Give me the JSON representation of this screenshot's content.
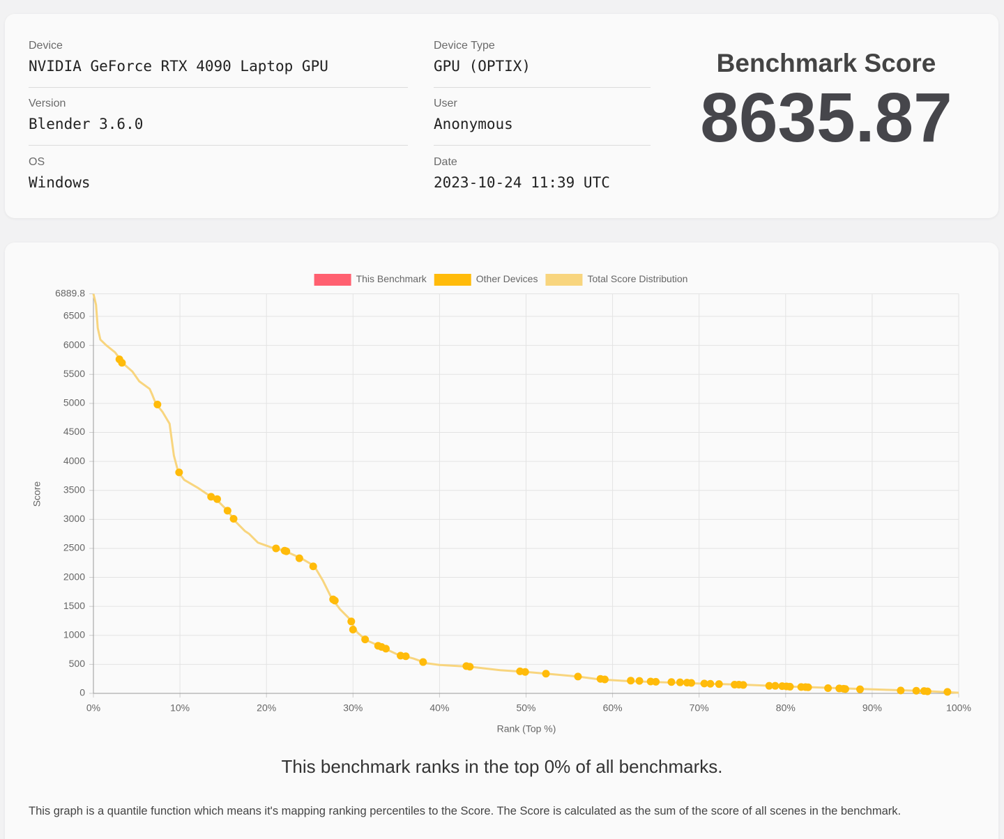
{
  "info": {
    "fields": [
      {
        "label": "Device",
        "value": "NVIDIA GeForce RTX 4090 Laptop GPU"
      },
      {
        "label": "Version",
        "value": "Blender 3.6.0"
      },
      {
        "label": "OS",
        "value": "Windows"
      },
      {
        "label": "Device Type",
        "value": "GPU (OPTIX)"
      },
      {
        "label": "User",
        "value": "Anonymous"
      },
      {
        "label": "Date",
        "value": "2023-10-24 11:39 UTC"
      }
    ],
    "score_label": "Benchmark Score",
    "score": 8635.87
  },
  "chart_data": {
    "type": "line",
    "x_label": "Rank (Top %)",
    "y_label": "Score",
    "legend": "top",
    "grid": true,
    "xlim": [
      0,
      100
    ],
    "xticks": [
      {
        "value": 0,
        "label": "0%"
      },
      {
        "value": 10,
        "label": "10%"
      },
      {
        "value": 20,
        "label": "20%"
      },
      {
        "value": 30,
        "label": "30%"
      },
      {
        "value": 40,
        "label": "40%"
      },
      {
        "value": 50,
        "label": "50%"
      },
      {
        "value": 60,
        "label": "60%"
      },
      {
        "value": 70,
        "label": "70%"
      },
      {
        "value": 80,
        "label": "80%"
      },
      {
        "value": 90,
        "label": "90%"
      },
      {
        "value": 100,
        "label": "100%"
      }
    ],
    "ylim": [
      0,
      6889.8
    ],
    "yticks": [
      0,
      500,
      1000,
      1500,
      2000,
      2500,
      3000,
      3500,
      4000,
      4500,
      5000,
      5500,
      6000,
      6500,
      6889.8
    ],
    "series": [
      {
        "name": "This Benchmark",
        "color": "#ff6070",
        "style": "points",
        "x": [],
        "values": []
      },
      {
        "name": "Other Devices",
        "color": "#ffbb0a",
        "style": "points",
        "x": [
          3.0,
          3.3,
          7.4,
          9.9,
          13.6,
          14.3,
          15.5,
          16.2,
          21.1,
          22.1,
          22.3,
          23.8,
          25.4,
          27.7,
          27.9,
          29.8,
          30.0,
          31.4,
          32.9,
          33.3,
          33.8,
          35.5,
          36.1,
          38.1,
          43.1,
          43.5,
          49.3,
          49.9,
          52.3,
          56.0,
          58.6,
          59.1,
          62.1,
          63.1,
          64.4,
          65.0,
          66.8,
          67.8,
          68.6,
          69.1,
          70.6,
          71.3,
          72.3,
          74.1,
          74.6,
          75.1,
          78.1,
          78.8,
          79.6,
          80.1,
          80.5,
          81.8,
          82.3,
          82.6,
          84.9,
          86.2,
          86.7,
          86.9,
          88.6,
          93.3,
          95.1,
          96.0,
          96.4,
          98.7
        ],
        "values": [
          5760,
          5700,
          4980,
          3810,
          3390,
          3350,
          3150,
          3010,
          2500,
          2460,
          2450,
          2330,
          2190,
          1620,
          1600,
          1240,
          1100,
          930,
          820,
          800,
          770,
          650,
          640,
          540,
          470,
          460,
          380,
          370,
          340,
          290,
          250,
          240,
          220,
          215,
          205,
          200,
          195,
          190,
          185,
          180,
          170,
          165,
          160,
          150,
          150,
          145,
          130,
          130,
          125,
          120,
          115,
          110,
          108,
          105,
          90,
          85,
          80,
          75,
          70,
          50,
          45,
          40,
          35,
          25
        ]
      },
      {
        "name": "Total Score Distribution",
        "color": "#f8d57e",
        "style": "line",
        "x": [
          0,
          0.3,
          0.5,
          0.8,
          1.5,
          2.5,
          3.5,
          4.5,
          5.3,
          6.5,
          6.8,
          7.2,
          8,
          8.8,
          9.3,
          9.8,
          10.5,
          12,
          13.5,
          14.5,
          15.5,
          16.5,
          17.5,
          18,
          19,
          20.5,
          21.5,
          22.5,
          24,
          25.5,
          26.5,
          27.5,
          28.5,
          29.5,
          30.5,
          31.5,
          33,
          35,
          37,
          38.5,
          40,
          43.5,
          47,
          50,
          53,
          56,
          58.5,
          62,
          66,
          70,
          75,
          80,
          84,
          88,
          92,
          96,
          100
        ],
        "values": [
          6889.8,
          6700,
          6300,
          6100,
          6000,
          5880,
          5680,
          5550,
          5380,
          5250,
          5150,
          5000,
          4850,
          4650,
          4100,
          3820,
          3680,
          3550,
          3400,
          3300,
          3150,
          2950,
          2800,
          2750,
          2600,
          2520,
          2480,
          2430,
          2330,
          2200,
          1950,
          1650,
          1450,
          1300,
          1050,
          920,
          820,
          680,
          600,
          520,
          490,
          460,
          400,
          370,
          330,
          290,
          240,
          210,
          190,
          170,
          150,
          120,
          100,
          80,
          60,
          40,
          10
        ]
      }
    ]
  },
  "summary": "This benchmark ranks in the top 0% of all benchmarks.",
  "note": "This graph is a quantile function which means it's mapping ranking percentiles to the Score. The Score is calculated as the sum of the score of all scenes in the benchmark."
}
